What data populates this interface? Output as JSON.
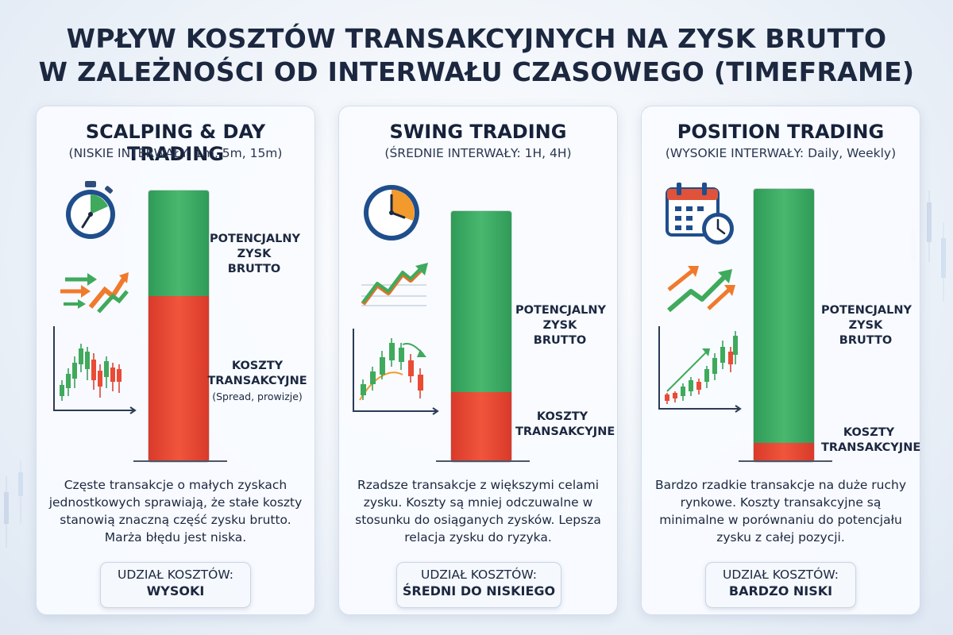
{
  "title": {
    "line1": "WPŁYW KOSZTÓW TRANSAKCYJNYCH NA ZYSK BRUTTO",
    "line2": "W ZALEŻNOŚCI OD INTERWAŁU CZASOWEGO (TIMEFRAME)"
  },
  "cards": [
    {
      "title": "SCALPING & DAY TRADING",
      "subtitle": "(NISKIE INTERWAŁY: 1m, 5m, 15m)",
      "profit_label": "POTENCJALNY ZYSK BRUTTO",
      "cost_label": "KOSZTY TRANSAKCYJNE",
      "cost_sublabel": "(Spread, prowizje)",
      "cost_share": 0.61,
      "description": "Częste transakcje o małych zyskach jednostkowych sprawiają, że stałe koszty stanowią znaczną część zysku brutto. Marża błędu jest niska.",
      "badge_label": "UDZIAŁ KOSZTÓW:",
      "badge_value": "WYSOKI",
      "icons": [
        "stopwatch-icon",
        "speed-arrows-icon",
        "candlestick-icon"
      ]
    },
    {
      "title": "SWING TRADING",
      "subtitle": "(ŚREDNIE INTERWAŁY: 1H, 4H)",
      "profit_label": "POTENCJALNY ZYSK BRUTTO",
      "cost_label": "KOSZTY TRANSAKCYJNE",
      "cost_sublabel": "",
      "cost_share": 0.28,
      "description": "Rzadsze transakcje z większymi celami zysku. Koszty są mniej odczuwalne w stosunku do osiąganych zysków. Lepsza relacja zysku do ryzyka.",
      "badge_label": "UDZIAŁ KOSZTÓW:",
      "badge_value": "ŚREDNI DO NISKIEGO",
      "icons": [
        "clock-icon",
        "trend-arrow-icon",
        "candlestick-icon"
      ]
    },
    {
      "title": "POSITION TRADING",
      "subtitle": "(WYSOKIE INTERWAŁY: Daily, Weekly)",
      "profit_label": "POTENCJALNY ZYSK BRUTTO",
      "cost_label": "KOSZTY TRANSAKCYJNE",
      "cost_sublabel": "",
      "cost_share": 0.07,
      "description": "Bardzo rzadkie transakcje na duże ruchy rynkowe. Koszty transakcyjne są minimalne w porównaniu do potencjału zysku z całej pozycji.",
      "badge_label": "UDZIAŁ KOSZTÓW:",
      "badge_value": "BARDZO NISKI",
      "icons": [
        "calendar-clock-icon",
        "trend-arrows-icon",
        "candlestick-icon"
      ]
    }
  ],
  "colors": {
    "profit": "#3fae66",
    "cost": "#ea4b35",
    "title": "#1c2840"
  }
}
